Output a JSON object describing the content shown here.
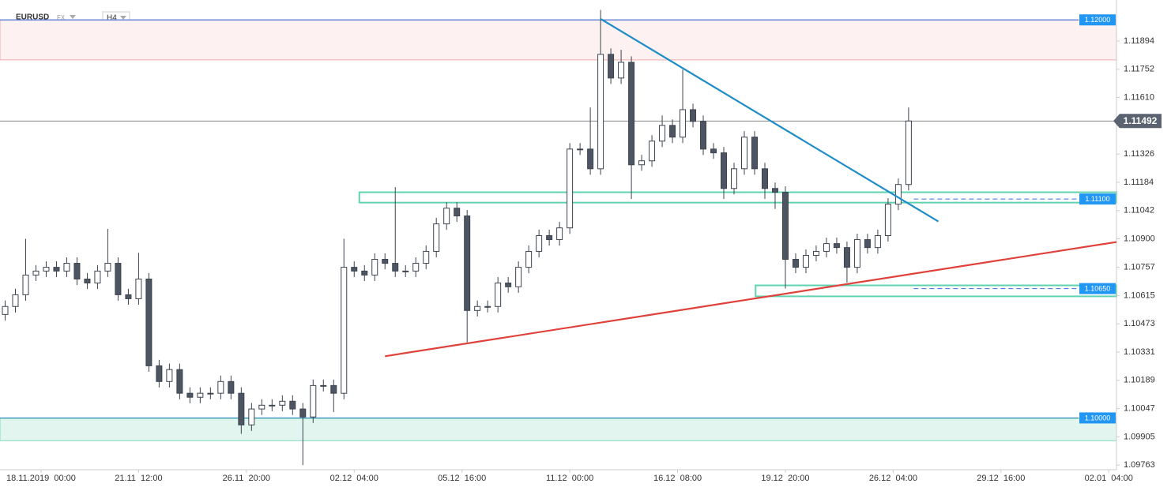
{
  "header": {
    "symbol": "EURUSD",
    "market": "FX",
    "timeframe": "H4"
  },
  "chart_data": {
    "type": "candlestick",
    "x": [
      0,
      2,
      4,
      6,
      8,
      10,
      12,
      14,
      16,
      18,
      20,
      22,
      24,
      26,
      28,
      30,
      32,
      34,
      36,
      38,
      40,
      42,
      44,
      46,
      48,
      50,
      52,
      54,
      56,
      58,
      60,
      62,
      64,
      66,
      68,
      70,
      72,
      74,
      76,
      78,
      80,
      82,
      84,
      86,
      88,
      90,
      92,
      94,
      96,
      98,
      100,
      102,
      104,
      106,
      108,
      110,
      112,
      114,
      116,
      118,
      120,
      122,
      124,
      126,
      128,
      130,
      132,
      134,
      136,
      138,
      140,
      142,
      144,
      146,
      148,
      150,
      152,
      154,
      156,
      158,
      160,
      162,
      164,
      166,
      168,
      170,
      172,
      174,
      176
    ],
    "open": [
      1.1052,
      1.1056,
      1.10619,
      1.10718,
      1.10738,
      1.10757,
      1.10738,
      1.10777,
      1.10698,
      1.10678,
      1.10738,
      1.10777,
      1.10619,
      1.10599,
      1.10698,
      1.10262,
      1.10183,
      1.10243,
      1.10124,
      1.10104,
      1.10124,
      1.10124,
      1.10183,
      1.10124,
      1.09965,
      1.10045,
      1.10064,
      1.10064,
      1.10084,
      1.10045,
      1.10005,
      1.10163,
      1.10163,
      1.10124,
      1.10757,
      1.10738,
      1.10718,
      1.10797,
      1.10777,
      1.10738,
      1.10738,
      1.10777,
      1.10837,
      1.10975,
      1.11054,
      1.11015,
      1.1054,
      1.1056,
      1.1056,
      1.10678,
      1.10659,
      1.10757,
      1.10837,
      1.10916,
      1.10896,
      1.10955,
      1.11351,
      1.11351,
      1.11252,
      1.11827,
      1.11708,
      1.11787,
      1.11272,
      1.11292,
      1.11391,
      1.1147,
      1.11411,
      1.11549,
      1.1149,
      1.11351,
      1.11332,
      1.11153,
      1.11252,
      1.11411,
      1.11252,
      1.11153,
      1.11134,
      1.10797,
      1.10757,
      1.10817,
      1.10837,
      1.10876,
      1.10856,
      1.10757,
      1.10896,
      1.10856,
      1.10916,
      1.11074,
      1.11173
    ],
    "high": [
      1.1059,
      1.10649,
      1.109,
      1.10768,
      1.10787,
      1.10787,
      1.10807,
      1.10807,
      1.10728,
      1.10768,
      1.1095,
      1.10807,
      1.10649,
      1.1083,
      1.10728,
      1.10292,
      1.10273,
      1.10273,
      1.10154,
      1.10154,
      1.10154,
      1.10213,
      1.10213,
      1.10154,
      1.10075,
      1.10094,
      1.10094,
      1.10114,
      1.10114,
      1.10075,
      1.10193,
      1.10193,
      1.10193,
      1.109,
      1.10787,
      1.10768,
      1.10827,
      1.10827,
      1.1116,
      1.10768,
      1.10807,
      1.10867,
      1.11005,
      1.11084,
      1.11084,
      1.11045,
      1.1059,
      1.1059,
      1.10708,
      1.10708,
      1.10787,
      1.10867,
      1.10946,
      1.10946,
      1.10985,
      1.11381,
      1.11381,
      1.1156,
      1.1205,
      1.11857,
      1.1185,
      1.11817,
      1.11322,
      1.11421,
      1.1152,
      1.115,
      1.1175,
      1.11579,
      1.1152,
      1.11381,
      1.11362,
      1.11282,
      1.11441,
      1.11441,
      1.11282,
      1.11183,
      1.11164,
      1.10827,
      1.10847,
      1.10867,
      1.10906,
      1.10906,
      1.10886,
      1.10926,
      1.10926,
      1.10946,
      1.11104,
      1.11203,
      1.1156
    ],
    "low": [
      1.1049,
      1.1053,
      1.10589,
      1.10688,
      1.10708,
      1.10708,
      1.10708,
      1.10668,
      1.10648,
      1.10648,
      1.10708,
      1.10589,
      1.10569,
      1.10569,
      1.10232,
      1.10153,
      1.10153,
      1.10094,
      1.10074,
      1.10074,
      1.10094,
      1.10094,
      1.10094,
      1.0992,
      1.09935,
      1.10015,
      1.10034,
      1.10034,
      1.10015,
      1.09763,
      1.09975,
      1.10133,
      1.1003,
      1.10094,
      1.10708,
      1.10688,
      1.10688,
      1.10747,
      1.10708,
      1.10708,
      1.10708,
      1.10747,
      1.10807,
      1.10945,
      1.10985,
      1.1038,
      1.1051,
      1.1053,
      1.1053,
      1.10629,
      1.10629,
      1.10727,
      1.10807,
      1.10866,
      1.10866,
      1.10925,
      1.11321,
      1.11222,
      1.11222,
      1.11678,
      1.11678,
      1.111,
      1.11242,
      1.11262,
      1.11361,
      1.11381,
      1.11381,
      1.1146,
      1.11321,
      1.11302,
      1.111,
      1.11123,
      1.11222,
      1.11222,
      1.111,
      1.1105,
      1.1065,
      1.10727,
      1.10727,
      1.10787,
      1.10807,
      1.10826,
      1.1068,
      1.10727,
      1.10826,
      1.10826,
      1.10886,
      1.11044,
      1.11143
    ],
    "close": [
      1.1056,
      1.10619,
      1.10718,
      1.10738,
      1.10757,
      1.10738,
      1.10777,
      1.10698,
      1.10678,
      1.10738,
      1.10777,
      1.10619,
      1.10599,
      1.10698,
      1.10262,
      1.10183,
      1.10243,
      1.10124,
      1.10104,
      1.10124,
      1.10124,
      1.10183,
      1.10124,
      1.09965,
      1.10045,
      1.10064,
      1.10064,
      1.10084,
      1.10045,
      1.10005,
      1.10163,
      1.10163,
      1.10124,
      1.10757,
      1.10738,
      1.10718,
      1.10797,
      1.10777,
      1.10738,
      1.10738,
      1.10777,
      1.10837,
      1.10975,
      1.11054,
      1.11015,
      1.1054,
      1.1056,
      1.1056,
      1.10678,
      1.10659,
      1.10757,
      1.10837,
      1.10916,
      1.10896,
      1.10955,
      1.11351,
      1.11351,
      1.11252,
      1.11827,
      1.11708,
      1.11787,
      1.11272,
      1.11292,
      1.11391,
      1.1147,
      1.11411,
      1.11549,
      1.1149,
      1.11351,
      1.11332,
      1.11153,
      1.11252,
      1.11411,
      1.11252,
      1.11153,
      1.11134,
      1.10797,
      1.10757,
      1.10817,
      1.10837,
      1.10876,
      1.10856,
      1.10757,
      1.10896,
      1.10856,
      1.10916,
      1.11074,
      1.11173,
      1.11492
    ],
    "up_color": "#ffffff",
    "down_color": "#4d5562",
    "wick_color": "#3d4450",
    "xlim": [
      -1,
      216.5
    ],
    "ylim": [
      1.0974,
      1.121
    ],
    "xticks": [
      {
        "value": 7,
        "label": "18.11.2019  00:00"
      },
      {
        "value": 26,
        "label": "21.11  12:00"
      },
      {
        "value": 47,
        "label": "26.11  20:00"
      },
      {
        "value": 68,
        "label": "02.12  04:00"
      },
      {
        "value": 89,
        "label": "05.12  16:00"
      },
      {
        "value": 110,
        "label": "11.12  00:00"
      },
      {
        "value": 131,
        "label": "16.12  08:00"
      },
      {
        "value": 152,
        "label": "19.12  20:00"
      },
      {
        "value": 173,
        "label": "26.12  04:00"
      },
      {
        "value": 194,
        "label": "29.12  16:00"
      },
      {
        "value": 215,
        "label": "02.01  04:00"
      }
    ],
    "yticks": [
      1.11894,
      1.11752,
      {
        "value": 1.1161,
        "label": "1.11610"
      },
      1.11326,
      1.11184,
      1.11042,
      {
        "value": 1.109,
        "label": "1.10900"
      },
      1.10757,
      1.10615,
      1.10473,
      1.10331,
      1.10189,
      1.10047,
      1.09905,
      1.09763
    ],
    "current_price": {
      "value": 1.11492,
      "label": "1.11492"
    },
    "zones": [
      {
        "from": 1.11799,
        "to": 1.12,
        "fill": "#fdf1f1",
        "border": "#f5a9a9"
      },
      {
        "from": 1.09886,
        "to": 1.09997,
        "fill": "#e2f6ef",
        "border": "#7fd8bd"
      },
      {
        "x0": 69,
        "x1": 216.5,
        "from": 1.11082,
        "to": 1.11134,
        "fill": "none",
        "border": "#5fd3b0"
      },
      {
        "x0": 146.2,
        "x1": 216.5,
        "from": 1.10611,
        "to": 1.10666,
        "fill": "none",
        "border": "#5fd3b0"
      }
    ],
    "levels": [
      {
        "value": 1.12,
        "label": "1.12000",
        "style": "solid",
        "color": "#3a6fd8"
      },
      {
        "value": 1.111,
        "label": "1.11100",
        "style": "dashed",
        "x0": 177,
        "color": "#3a6fd8"
      },
      {
        "value": 1.1065,
        "label": "1.10650",
        "style": "dashed",
        "x0": 177,
        "color": "#3a6fd8"
      },
      {
        "value": 1.1,
        "label": "1.10000",
        "style": "solid",
        "color": "#3b8fc6"
      }
    ],
    "trendlines": [
      {
        "x": [
          116,
          181.8
        ],
        "y": [
          1.12005,
          1.10987
        ],
        "color": "#1f8dc6"
      },
      {
        "x": [
          74,
          216.5
        ],
        "y": [
          1.1031,
          1.10884
        ],
        "color": "#e0413a"
      }
    ]
  }
}
